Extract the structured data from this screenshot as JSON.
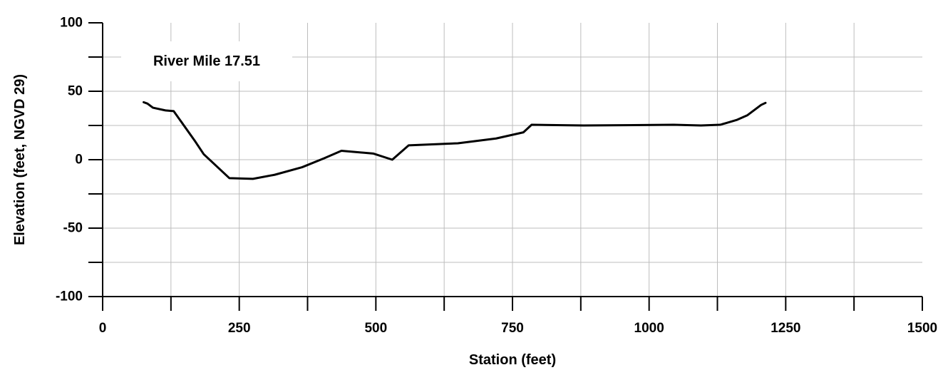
{
  "chart_data": {
    "type": "line",
    "title": "",
    "xlabel": "Station (feet)",
    "ylabel": "Elevation (feet, NGVD 29)",
    "xlim": [
      0,
      1500
    ],
    "ylim": [
      -100,
      100
    ],
    "x_ticks": [
      0,
      250,
      500,
      750,
      1000,
      1250,
      1500
    ],
    "x_tick_labels": [
      "0",
      "250",
      "500",
      "750",
      "1000",
      "1250",
      "1500"
    ],
    "x_minor_ticks": [
      125,
      375,
      625,
      875,
      1125,
      1375
    ],
    "y_ticks": [
      -100,
      -50,
      0,
      50,
      100
    ],
    "y_tick_labels": [
      "-100",
      "-50",
      "0",
      "50",
      "100"
    ],
    "y_minor_ticks": [
      -75,
      -25,
      25,
      75
    ],
    "grid": true,
    "annotation": "River Mile 17.51",
    "series": [
      {
        "color": "#000000",
        "x": [
          75,
          82,
          92,
          115,
          130,
          170,
          185,
          232,
          275,
          315,
          365,
          405,
          437,
          495,
          530,
          560,
          650,
          720,
          770,
          785,
          880,
          1045,
          1095,
          1130,
          1160,
          1180,
          1205,
          1213
        ],
        "y": [
          42,
          41,
          38,
          36,
          35.5,
          13,
          4,
          -13.5,
          -14,
          -11,
          -5.5,
          1,
          6.5,
          4.5,
          0,
          10.5,
          12,
          15.5,
          20,
          25.5,
          25,
          25.5,
          25,
          25.5,
          29,
          32.5,
          40,
          41.5
        ]
      }
    ]
  }
}
